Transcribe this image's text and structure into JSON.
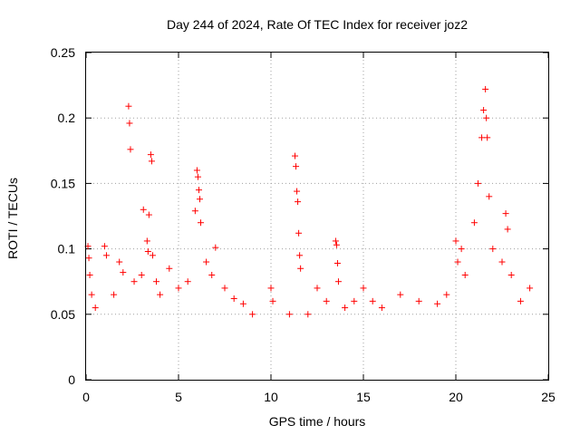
{
  "chart_data": {
    "type": "scatter",
    "title": "Day 244 of 2024, Rate Of TEC Index for receiver joz2",
    "xlabel": "GPS time / hours",
    "ylabel": "ROTI / TECUs",
    "xlim": [
      0,
      25
    ],
    "ylim": [
      0,
      0.25
    ],
    "xticks": [
      0,
      5,
      10,
      15,
      20,
      25
    ],
    "yticks": [
      0,
      0.05,
      0.1,
      0.15,
      0.2,
      0.25
    ],
    "xtick_labels": [
      "0",
      "5",
      "10",
      "15",
      "20",
      "25"
    ],
    "ytick_labels": [
      "0",
      "0.05",
      "0.1",
      "0.15",
      "0.2",
      "0.25"
    ],
    "grid": true,
    "marker": "+",
    "color": "#ff0000",
    "series": [
      {
        "name": "ROTI",
        "points": [
          [
            0.1,
            0.102
          ],
          [
            0.15,
            0.093
          ],
          [
            0.2,
            0.08
          ],
          [
            0.3,
            0.065
          ],
          [
            0.5,
            0.055
          ],
          [
            1.0,
            0.102
          ],
          [
            1.1,
            0.095
          ],
          [
            1.5,
            0.065
          ],
          [
            1.8,
            0.09
          ],
          [
            2.0,
            0.082
          ],
          [
            2.3,
            0.209
          ],
          [
            2.35,
            0.196
          ],
          [
            2.4,
            0.176
          ],
          [
            2.6,
            0.075
          ],
          [
            3.0,
            0.08
          ],
          [
            3.1,
            0.13
          ],
          [
            3.3,
            0.106
          ],
          [
            3.35,
            0.098
          ],
          [
            3.4,
            0.126
          ],
          [
            3.5,
            0.172
          ],
          [
            3.55,
            0.167
          ],
          [
            3.6,
            0.095
          ],
          [
            3.8,
            0.075
          ],
          [
            4.0,
            0.065
          ],
          [
            4.5,
            0.085
          ],
          [
            5.0,
            0.07
          ],
          [
            5.5,
            0.075
          ],
          [
            5.9,
            0.129
          ],
          [
            6.0,
            0.16
          ],
          [
            6.05,
            0.155
          ],
          [
            6.1,
            0.145
          ],
          [
            6.15,
            0.138
          ],
          [
            6.2,
            0.12
          ],
          [
            6.5,
            0.09
          ],
          [
            6.8,
            0.08
          ],
          [
            7.0,
            0.101
          ],
          [
            7.5,
            0.07
          ],
          [
            8.0,
            0.062
          ],
          [
            8.5,
            0.058
          ],
          [
            9.0,
            0.05
          ],
          [
            10.0,
            0.07
          ],
          [
            10.1,
            0.06
          ],
          [
            11.0,
            0.05
          ],
          [
            11.3,
            0.171
          ],
          [
            11.35,
            0.163
          ],
          [
            11.4,
            0.144
          ],
          [
            11.45,
            0.136
          ],
          [
            11.5,
            0.112
          ],
          [
            11.55,
            0.095
          ],
          [
            11.6,
            0.085
          ],
          [
            12.0,
            0.05
          ],
          [
            12.5,
            0.07
          ],
          [
            13.0,
            0.06
          ],
          [
            13.5,
            0.106
          ],
          [
            13.55,
            0.103
          ],
          [
            13.6,
            0.089
          ],
          [
            13.65,
            0.075
          ],
          [
            14.0,
            0.055
          ],
          [
            14.5,
            0.06
          ],
          [
            15.0,
            0.07
          ],
          [
            15.5,
            0.06
          ],
          [
            16.0,
            0.055
          ],
          [
            17.0,
            0.065
          ],
          [
            18.0,
            0.06
          ],
          [
            19.0,
            0.058
          ],
          [
            19.5,
            0.065
          ],
          [
            20.0,
            0.106
          ],
          [
            20.1,
            0.09
          ],
          [
            20.3,
            0.1
          ],
          [
            20.5,
            0.08
          ],
          [
            21.0,
            0.12
          ],
          [
            21.2,
            0.15
          ],
          [
            21.4,
            0.185
          ],
          [
            21.5,
            0.206
          ],
          [
            21.6,
            0.222
          ],
          [
            21.65,
            0.2
          ],
          [
            21.7,
            0.185
          ],
          [
            21.8,
            0.14
          ],
          [
            22.0,
            0.1
          ],
          [
            22.5,
            0.09
          ],
          [
            22.7,
            0.127
          ],
          [
            22.8,
            0.115
          ],
          [
            23.0,
            0.08
          ],
          [
            23.5,
            0.06
          ],
          [
            24.0,
            0.07
          ]
        ]
      }
    ]
  }
}
